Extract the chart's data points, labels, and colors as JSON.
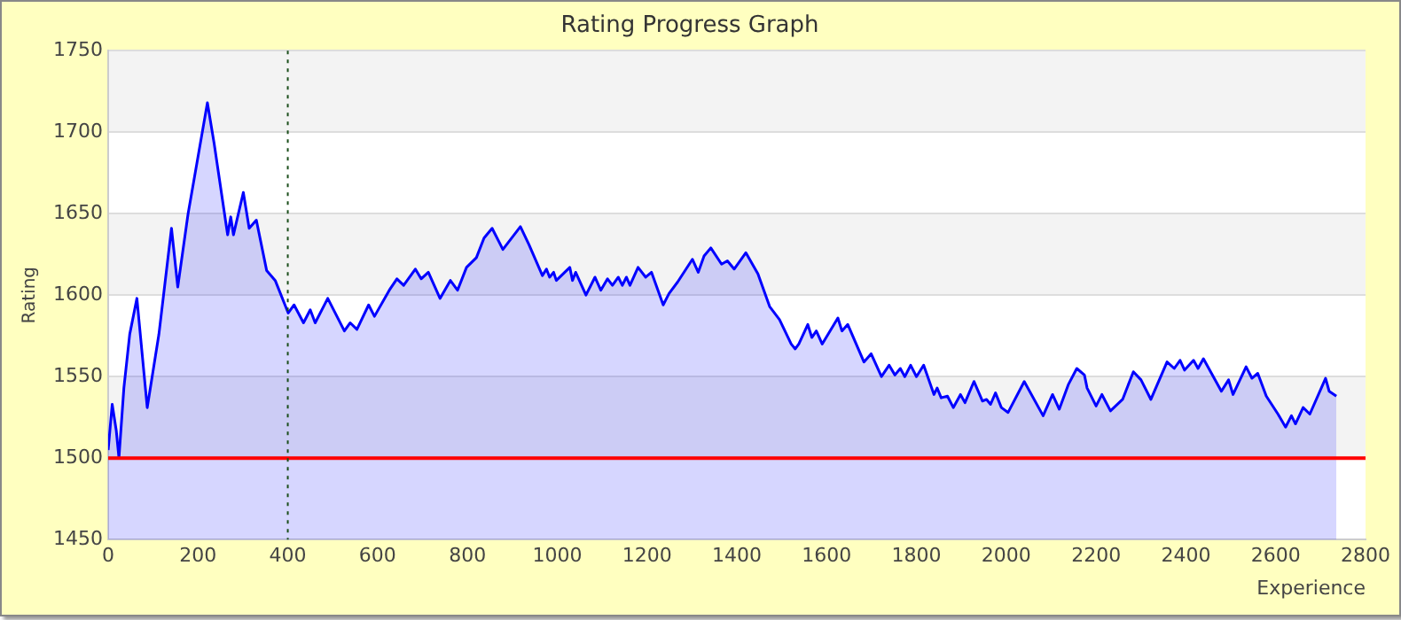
{
  "chart_data": {
    "type": "area",
    "title": "Rating Progress Graph",
    "xlabel": "Experience",
    "ylabel": "Rating",
    "xlim": [
      0,
      2800
    ],
    "xticks": [
      0,
      200,
      400,
      600,
      800,
      1000,
      1200,
      1400,
      1600,
      1800,
      2000,
      2200,
      2400,
      2600,
      2800
    ],
    "ylim": [
      1450,
      1750
    ],
    "yticks": [
      1450,
      1500,
      1550,
      1600,
      1650,
      1700,
      1750
    ],
    "grid": "y",
    "legend": false,
    "marker": "none",
    "line_style": "solid",
    "x": [
      0,
      9,
      18,
      24,
      35,
      48,
      64,
      87,
      113,
      141,
      155,
      178,
      221,
      236,
      266,
      273,
      279,
      301,
      314,
      330,
      353,
      372,
      401,
      414,
      435,
      450,
      461,
      489,
      526,
      539,
      554,
      580,
      593,
      626,
      643,
      658,
      684,
      697,
      713,
      739,
      762,
      778,
      798,
      820,
      837,
      855,
      879,
      918,
      937,
      967,
      976,
      983,
      992,
      998,
      1028,
      1034,
      1041,
      1064,
      1084,
      1097,
      1112,
      1123,
      1136,
      1145,
      1154,
      1162,
      1180,
      1197,
      1210,
      1236,
      1249,
      1268,
      1301,
      1314,
      1327,
      1342,
      1366,
      1379,
      1394,
      1420,
      1447,
      1473,
      1495,
      1521,
      1530,
      1538,
      1558,
      1567,
      1577,
      1590,
      1625,
      1634,
      1647,
      1683,
      1699,
      1722,
      1739,
      1752,
      1764,
      1774,
      1787,
      1800,
      1816,
      1839,
      1846,
      1855,
      1869,
      1882,
      1898,
      1908,
      1928,
      1947,
      1956,
      1965,
      1976,
      1989,
      2004,
      2040,
      2082,
      2103,
      2118,
      2138,
      2157,
      2174,
      2180,
      2200,
      2213,
      2232,
      2259,
      2283,
      2300,
      2322,
      2358,
      2374,
      2387,
      2397,
      2417,
      2427,
      2439,
      2479,
      2495,
      2505,
      2534,
      2547,
      2560,
      2579,
      2605,
      2622,
      2635,
      2644,
      2661,
      2676,
      2711,
      2719,
      2735
    ],
    "series": [
      {
        "color": "#0000ff",
        "values": [
          1505,
          1533,
          1517,
          1500,
          1543,
          1576,
          1598,
          1531,
          1576,
          1641,
          1605,
          1650,
          1718,
          1693,
          1637,
          1648,
          1637,
          1663,
          1641,
          1646,
          1615,
          1609,
          1589,
          1594,
          1583,
          1591,
          1583,
          1598,
          1578,
          1583,
          1579,
          1594,
          1587,
          1603,
          1610,
          1606,
          1616,
          1610,
          1614,
          1598,
          1609,
          1603,
          1617,
          1623,
          1635,
          1641,
          1628,
          1642,
          1631,
          1612,
          1616,
          1611,
          1614,
          1609,
          1617,
          1609,
          1614,
          1600,
          1611,
          1603,
          1610,
          1606,
          1611,
          1606,
          1611,
          1606,
          1617,
          1611,
          1614,
          1594,
          1601,
          1608,
          1622,
          1614,
          1624,
          1629,
          1619,
          1621,
          1616,
          1626,
          1613,
          1593,
          1585,
          1570,
          1567,
          1570,
          1582,
          1574,
          1578,
          1570,
          1586,
          1578,
          1582,
          1559,
          1564,
          1550,
          1557,
          1551,
          1555,
          1550,
          1557,
          1550,
          1557,
          1539,
          1543,
          1537,
          1538,
          1531,
          1539,
          1534,
          1547,
          1535,
          1536,
          1533,
          1540,
          1531,
          1528,
          1547,
          1526,
          1539,
          1530,
          1545,
          1555,
          1551,
          1543,
          1532,
          1539,
          1529,
          1536,
          1553,
          1548,
          1536,
          1559,
          1555,
          1560,
          1554,
          1560,
          1555,
          1561,
          1541,
          1548,
          1539,
          1556,
          1549,
          1552,
          1538,
          1527,
          1519,
          1526,
          1521,
          1531,
          1527,
          1549,
          1541,
          1538
        ]
      }
    ],
    "ref_lines": [
      {
        "axis": "y",
        "value": 1500,
        "color": "#ff0000",
        "line_style": "solid"
      },
      {
        "axis": "x",
        "value": 400,
        "color": "#1a4d1a",
        "line_style": "dotted"
      }
    ]
  }
}
